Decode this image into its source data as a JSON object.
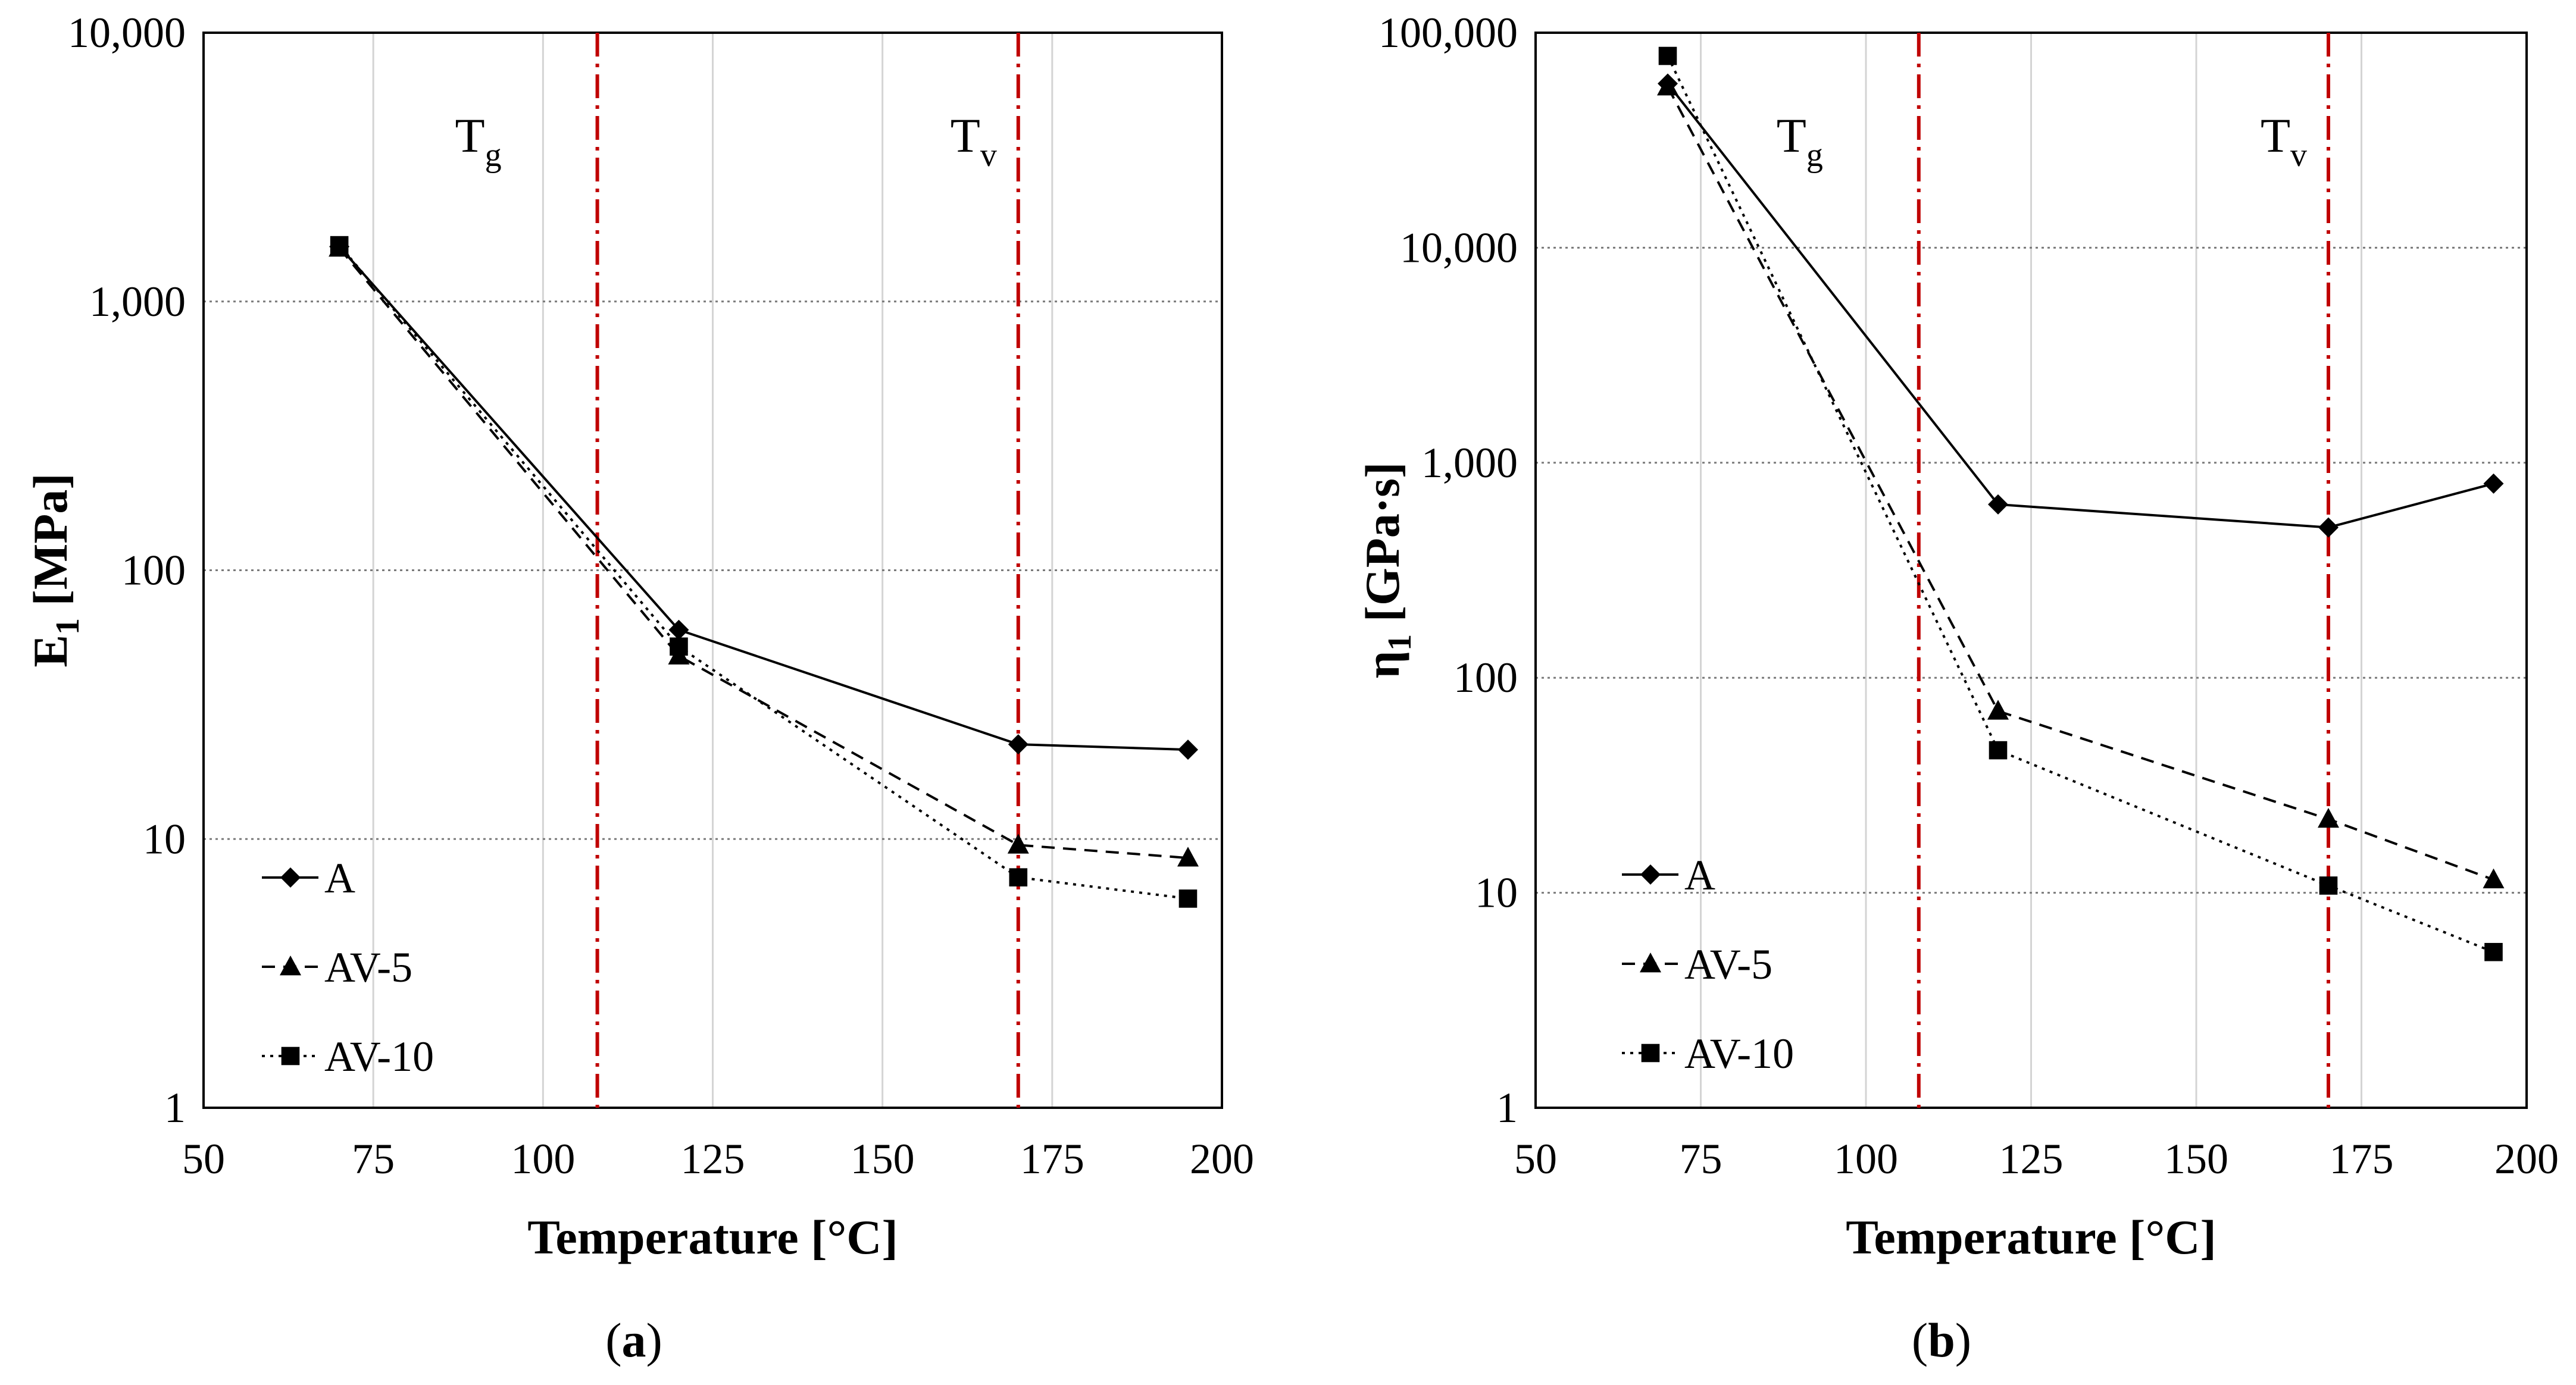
{
  "chart_data": [
    {
      "type": "line",
      "panel": "a",
      "panel_label": {
        "open": "(",
        "letter": "a",
        "close": ")"
      },
      "xlabel": "Temperature [°C]",
      "ylabel": {
        "main": "E",
        "sub": "1",
        "rest": " [MPa]"
      },
      "xlim": [
        50,
        200
      ],
      "ylim": [
        1,
        10000
      ],
      "yscale": "log",
      "xticks": [
        50,
        75,
        100,
        125,
        150,
        175,
        200
      ],
      "yticks": [
        {
          "value": 1,
          "label": "1"
        },
        {
          "value": 10,
          "label": "10"
        },
        {
          "value": 100,
          "label": "100"
        },
        {
          "value": 1000,
          "label": "1,000"
        },
        {
          "value": 10000,
          "label": "10,000"
        }
      ],
      "grid": true,
      "vlines": [
        {
          "x": 108,
          "label": "T",
          "sub": "g"
        },
        {
          "x": 170,
          "label": "T",
          "sub": "v"
        }
      ],
      "series": [
        {
          "name": "A",
          "marker": "diamond",
          "dash": "solid",
          "x": [
            70,
            120,
            170,
            195
          ],
          "values": [
            1600,
            60,
            22.5,
            21.5
          ]
        },
        {
          "name": "AV-5",
          "marker": "triangle",
          "dash": "dashed",
          "x": [
            70,
            120,
            170,
            195
          ],
          "values": [
            1580,
            48,
            9.5,
            8.5
          ]
        },
        {
          "name": "AV-10",
          "marker": "square",
          "dash": "dotted",
          "x": [
            70,
            120,
            170,
            195
          ],
          "values": [
            1620,
            52,
            7.2,
            6.0
          ]
        }
      ],
      "legend_position": "bottom-left"
    },
    {
      "type": "line",
      "panel": "b",
      "panel_label": {
        "open": "(",
        "letter": "b",
        "close": ")"
      },
      "xlabel": "Temperature [°C]",
      "ylabel": {
        "main": "η",
        "sub": "1",
        "rest": " [GPa·s]"
      },
      "xlim": [
        50,
        200
      ],
      "ylim": [
        1,
        100000
      ],
      "yscale": "log",
      "xticks": [
        50,
        75,
        100,
        125,
        150,
        175,
        200
      ],
      "yticks": [
        {
          "value": 1,
          "label": "1"
        },
        {
          "value": 10,
          "label": "10"
        },
        {
          "value": 100,
          "label": "100"
        },
        {
          "value": 1000,
          "label": "1,000"
        },
        {
          "value": 10000,
          "label": "10,000"
        },
        {
          "value": 100000,
          "label": "100,000"
        }
      ],
      "grid": true,
      "vlines": [
        {
          "x": 108,
          "label": "T",
          "sub": "g"
        },
        {
          "x": 170,
          "label": "T",
          "sub": "v"
        }
      ],
      "series": [
        {
          "name": "A",
          "marker": "diamond",
          "dash": "solid",
          "x": [
            70,
            120,
            170,
            195
          ],
          "values": [
            58000,
            640,
            500,
            800
          ]
        },
        {
          "name": "AV-5",
          "marker": "triangle",
          "dash": "dashed",
          "x": [
            70,
            120,
            170,
            195
          ],
          "values": [
            56000,
            70,
            22,
            11.5
          ]
        },
        {
          "name": "AV-10",
          "marker": "square",
          "dash": "dotted",
          "x": [
            70,
            120,
            170,
            195
          ],
          "values": [
            78000,
            46,
            10.8,
            5.3
          ]
        }
      ],
      "legend_position": "bottom-left"
    }
  ]
}
